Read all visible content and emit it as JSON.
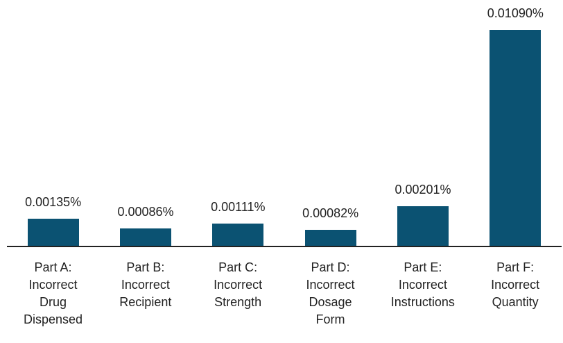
{
  "chart_data": {
    "type": "bar",
    "categories": [
      "Part A:\nIncorrect\nDrug\nDispensed",
      "Part B:\nIncorrect\nRecipient",
      "Part C:\nIncorrect\nStrength",
      "Part D:\nIncorrect\nDosage\nForm",
      "Part E:\nIncorrect\nInstructions",
      "Part F:\nIncorrect\nQuantity"
    ],
    "values": [
      0.00135,
      0.00086,
      0.00111,
      0.00082,
      0.00201,
      0.0109
    ],
    "value_labels": [
      "0.00135%",
      "0.00086%",
      "0.00111%",
      "0.00082%",
      "0.00201%",
      "0.01090%"
    ],
    "color": "#0b5272"
  }
}
